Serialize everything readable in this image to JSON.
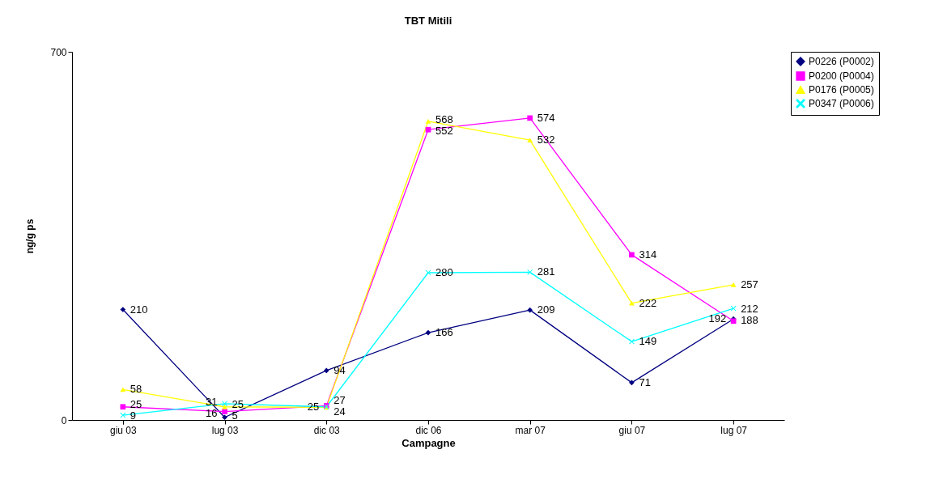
{
  "chart_data": {
    "type": "line",
    "title": "TBT Mitili",
    "xlabel": "Campagne",
    "ylabel": "ng/g ps",
    "categories": [
      "giu 03",
      "lug 03",
      "dic 03",
      "dic 06",
      "mar 07",
      "giu 07",
      "lug 07"
    ],
    "series": [
      {
        "name": "P0226 (P0002)",
        "color": "#000080",
        "marker": "diamond",
        "values": [
          210,
          5,
          94,
          166,
          209,
          71,
          192
        ]
      },
      {
        "name": "P0200 (P0004)",
        "color": "#ff00ff",
        "marker": "square",
        "values": [
          25,
          16,
          27,
          552,
          574,
          314,
          188
        ]
      },
      {
        "name": "P0176 (P0005)",
        "color": "#ffff00",
        "marker": "triangle",
        "values": [
          58,
          25,
          24,
          568,
          532,
          222,
          257
        ]
      },
      {
        "name": "P0347 (P0006)",
        "color": "#00ffff",
        "marker": "cross",
        "values": [
          9,
          31,
          25,
          280,
          281,
          149,
          212
        ]
      }
    ],
    "ylim": [
      0,
      700
    ],
    "yticks": [
      0,
      700
    ],
    "grid": false,
    "legend": "right",
    "data_labels": true,
    "line_style": "solid"
  }
}
